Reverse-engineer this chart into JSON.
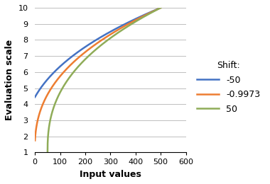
{
  "title": "",
  "xlabel": "Input values",
  "ylabel": "Evaluation scale",
  "xlim": [
    0,
    600
  ],
  "ylim": [
    1,
    10
  ],
  "xticks": [
    0,
    100,
    200,
    300,
    400,
    500,
    600
  ],
  "yticks": [
    1,
    2,
    3,
    4,
    5,
    6,
    7,
    8,
    9,
    10
  ],
  "x_max": 500,
  "y_min": 1,
  "y_max": 10,
  "power": 0.4,
  "series": [
    {
      "shift": -50,
      "color": "#4472c4",
      "label": "-50"
    },
    {
      "shift": -0.9973,
      "color": "#ed7d31",
      "label": "-0.9973"
    },
    {
      "shift": 50,
      "color": "#8fac58",
      "label": "50"
    }
  ],
  "legend_title": "Shift:",
  "grid_color": "#bfbfbf",
  "background_color": "#ffffff",
  "line_width": 1.8
}
